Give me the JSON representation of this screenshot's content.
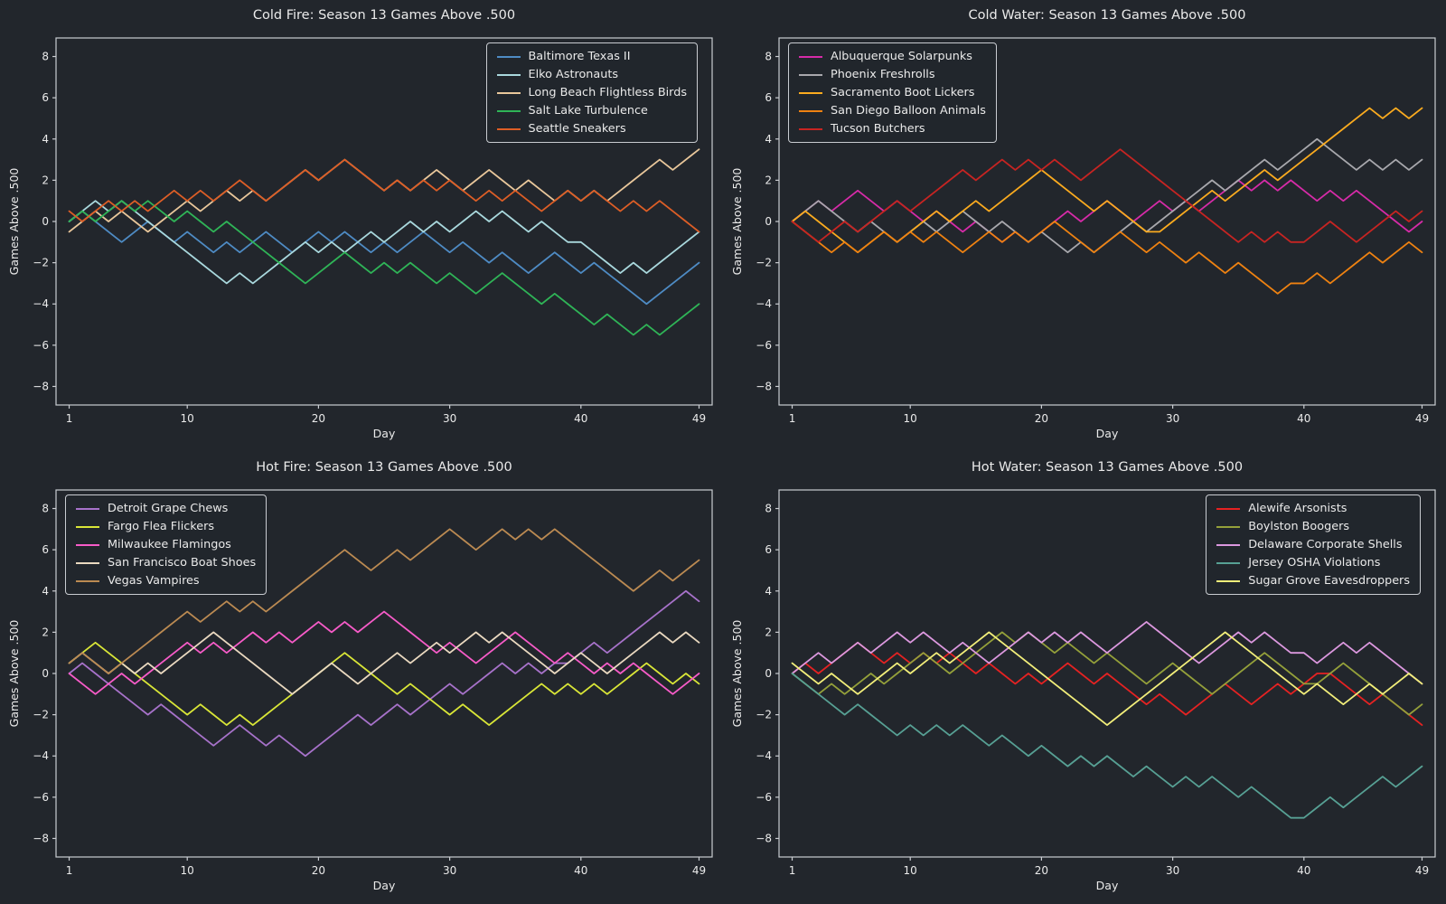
{
  "app": {
    "background": "#22262c",
    "text_color": "#eaeaea",
    "spine_color": "#c9ccd1"
  },
  "axis": {
    "x_label": "Day",
    "y_label": "Games Above .500",
    "x_ticks": [
      1,
      10,
      20,
      30,
      40,
      49
    ],
    "y_ticks": [
      -8,
      -6,
      -4,
      -2,
      0,
      2,
      4,
      6,
      8
    ],
    "x_range": [
      0,
      50
    ],
    "y_range": [
      -8.9,
      8.9
    ],
    "grid": false,
    "day_start": 1
  },
  "chart_data": [
    {
      "type": "line",
      "title": "Cold Fire: Season 13 Games Above .500",
      "xlabel": "Day",
      "ylabel": "Games Above .500",
      "legend_position": "top-right",
      "series": [
        {
          "name": "Baltimore Texas II",
          "color": "#4e8bc4",
          "values": [
            0,
            0.5,
            0,
            -0.5,
            -1,
            -0.5,
            0,
            -0.5,
            -1,
            -0.5,
            -1,
            -1.5,
            -1,
            -1.5,
            -1,
            -0.5,
            -1,
            -1.5,
            -1,
            -0.5,
            -1,
            -0.5,
            -1,
            -1.5,
            -1,
            -1.5,
            -1,
            -0.5,
            -1,
            -1.5,
            -1,
            -1.5,
            -2,
            -1.5,
            -2,
            -2.5,
            -2,
            -1.5,
            -2,
            -2.5,
            -2,
            -2.5,
            -3,
            -3.5,
            -4,
            -3.5,
            -3,
            -2.5,
            -2
          ]
        },
        {
          "name": "Elko Astronauts",
          "color": "#a9d8dd",
          "values": [
            0,
            0.5,
            1,
            0.5,
            1,
            0.5,
            0,
            -0.5,
            -1,
            -1.5,
            -2,
            -2.5,
            -3,
            -2.5,
            -3,
            -2.5,
            -2,
            -1.5,
            -1,
            -1.5,
            -1,
            -1.5,
            -1,
            -0.5,
            -1,
            -0.5,
            0,
            -0.5,
            0,
            -0.5,
            0,
            0.5,
            0,
            0.5,
            0,
            -0.5,
            0,
            -0.5,
            -1,
            -1,
            -1.5,
            -2,
            -2.5,
            -2,
            -2.5,
            -2,
            -1.5,
            -1,
            -0.5
          ]
        },
        {
          "name": "Long Beach Flightless Birds",
          "color": "#e9c79b",
          "values": [
            -0.5,
            0,
            0.5,
            0,
            0.5,
            0,
            -0.5,
            0,
            0.5,
            1,
            0.5,
            1,
            1.5,
            1,
            1.5,
            1,
            1.5,
            2,
            2.5,
            2,
            2.5,
            3,
            2.5,
            2,
            1.5,
            2,
            1.5,
            2,
            2.5,
            2,
            1.5,
            2,
            2.5,
            2,
            1.5,
            2,
            1.5,
            1,
            1.5,
            1,
            1.5,
            1,
            1.5,
            2,
            2.5,
            3,
            2.5,
            3,
            3.5
          ]
        },
        {
          "name": "Salt Lake Turbulence",
          "color": "#2fb457",
          "values": [
            0,
            0.5,
            0,
            0.5,
            1,
            0.5,
            1,
            0.5,
            0,
            0.5,
            0,
            -0.5,
            0,
            -0.5,
            -1,
            -1.5,
            -2,
            -2.5,
            -3,
            -2.5,
            -2,
            -1.5,
            -2,
            -2.5,
            -2,
            -2.5,
            -2,
            -2.5,
            -3,
            -2.5,
            -3,
            -3.5,
            -3,
            -2.5,
            -3,
            -3.5,
            -4,
            -3.5,
            -4,
            -4.5,
            -5,
            -4.5,
            -5,
            -5.5,
            -5,
            -5.5,
            -5,
            -4.5,
            -4
          ]
        },
        {
          "name": "Seattle Sneakers",
          "color": "#dd5e26",
          "values": [
            0.5,
            0,
            0.5,
            1,
            0.5,
            1,
            0.5,
            1,
            1.5,
            1,
            1.5,
            1,
            1.5,
            2,
            1.5,
            1,
            1.5,
            2,
            2.5,
            2,
            2.5,
            3,
            2.5,
            2,
            1.5,
            2,
            1.5,
            2,
            1.5,
            2,
            1.5,
            1,
            1.5,
            1,
            1.5,
            1,
            0.5,
            1,
            1.5,
            1,
            1.5,
            1,
            0.5,
            1,
            0.5,
            1,
            0.5,
            0,
            -0.5
          ]
        }
      ]
    },
    {
      "type": "line",
      "title": "Cold Water: Season 13 Games Above .500",
      "xlabel": "Day",
      "ylabel": "Games Above .500",
      "legend_position": "top-left",
      "series": [
        {
          "name": "Albuquerque Solarpunks",
          "color": "#d62ba8",
          "values": [
            0,
            0.5,
            1,
            0.5,
            1,
            1.5,
            1,
            0.5,
            1,
            0.5,
            0,
            0.5,
            0,
            -0.5,
            0,
            -0.5,
            -1,
            -0.5,
            -1,
            -0.5,
            0,
            0.5,
            0,
            0.5,
            1,
            0.5,
            0,
            0.5,
            1,
            0.5,
            1,
            0.5,
            1,
            1.5,
            2,
            1.5,
            2,
            1.5,
            2,
            1.5,
            1,
            1.5,
            1,
            1.5,
            1,
            0.5,
            0,
            -0.5,
            0
          ]
        },
        {
          "name": "Phoenix Freshrolls",
          "color": "#a8a8ad",
          "values": [
            0,
            0.5,
            1,
            0.5,
            0,
            -0.5,
            0,
            -0.5,
            -1,
            -0.5,
            0,
            -0.5,
            0,
            0.5,
            0,
            -0.5,
            0,
            -0.5,
            -1,
            -0.5,
            -1,
            -1.5,
            -1,
            -1.5,
            -1,
            -0.5,
            0,
            -0.5,
            0,
            0.5,
            1,
            1.5,
            2,
            1.5,
            2,
            2.5,
            3,
            2.5,
            3,
            3.5,
            4,
            3.5,
            3,
            2.5,
            3,
            2.5,
            3,
            2.5,
            3
          ]
        },
        {
          "name": "Sacramento Boot Lickers",
          "color": "#fbab1f",
          "values": [
            0,
            0.5,
            0,
            -0.5,
            -1,
            -1.5,
            -1,
            -0.5,
            -1,
            -0.5,
            0,
            0.5,
            0,
            0.5,
            1,
            0.5,
            1,
            1.5,
            2,
            2.5,
            2,
            1.5,
            1,
            0.5,
            1,
            0.5,
            0,
            -0.5,
            -0.5,
            0,
            0.5,
            1,
            1.5,
            1,
            1.5,
            2,
            2.5,
            2,
            2.5,
            3,
            3.5,
            4,
            4.5,
            5,
            5.5,
            5,
            5.5,
            5,
            5.5
          ]
        },
        {
          "name": "San Diego Balloon Animals",
          "color": "#ef8211",
          "values": [
            0,
            -0.5,
            -1,
            -1.5,
            -1,
            -1.5,
            -1,
            -0.5,
            -1,
            -0.5,
            -1,
            -0.5,
            -1,
            -1.5,
            -1,
            -0.5,
            -1,
            -0.5,
            -1,
            -0.5,
            0,
            -0.5,
            -1,
            -1.5,
            -1,
            -0.5,
            -1,
            -1.5,
            -1,
            -1.5,
            -2,
            -1.5,
            -2,
            -2.5,
            -2,
            -2.5,
            -3,
            -3.5,
            -3,
            -3,
            -2.5,
            -3,
            -2.5,
            -2,
            -1.5,
            -2,
            -1.5,
            -1,
            -1.5
          ]
        },
        {
          "name": "Tucson Butchers",
          "color": "#c72422",
          "values": [
            0,
            -0.5,
            -1,
            -0.5,
            0,
            -0.5,
            0,
            0.5,
            1,
            0.5,
            1,
            1.5,
            2,
            2.5,
            2,
            2.5,
            3,
            2.5,
            3,
            2.5,
            3,
            2.5,
            2,
            2.5,
            3,
            3.5,
            3,
            2.5,
            2,
            1.5,
            1,
            0.5,
            0,
            -0.5,
            -1,
            -0.5,
            -1,
            -0.5,
            -1,
            -1,
            -0.5,
            0,
            -0.5,
            -1,
            -0.5,
            0,
            0.5,
            0,
            0.5
          ]
        }
      ]
    },
    {
      "type": "line",
      "title": "Hot Fire: Season 13 Games Above .500",
      "xlabel": "Day",
      "ylabel": "Games Above .500",
      "legend_position": "top-left",
      "series": [
        {
          "name": "Detroit Grape Chews",
          "color": "#a772ca",
          "values": [
            0,
            0.5,
            0,
            -0.5,
            -1,
            -1.5,
            -2,
            -1.5,
            -2,
            -2.5,
            -3,
            -3.5,
            -3,
            -2.5,
            -3,
            -3.5,
            -3,
            -3.5,
            -4,
            -3.5,
            -3,
            -2.5,
            -2,
            -2.5,
            -2,
            -1.5,
            -2,
            -1.5,
            -1,
            -0.5,
            -1,
            -0.5,
            0,
            0.5,
            0,
            0.5,
            0,
            0.5,
            0.5,
            1,
            1.5,
            1,
            1.5,
            2,
            2.5,
            3,
            3.5,
            4,
            3.5
          ]
        },
        {
          "name": "Fargo Flea Flickers",
          "color": "#d9e637",
          "values": [
            0.5,
            1,
            1.5,
            1,
            0.5,
            0,
            -0.5,
            -1,
            -1.5,
            -2,
            -1.5,
            -2,
            -2.5,
            -2,
            -2.5,
            -2,
            -1.5,
            -1,
            -0.5,
            0,
            0.5,
            1,
            0.5,
            0,
            -0.5,
            -1,
            -0.5,
            -1,
            -1.5,
            -2,
            -1.5,
            -2,
            -2.5,
            -2,
            -1.5,
            -1,
            -0.5,
            -1,
            -0.5,
            -1,
            -0.5,
            -1,
            -0.5,
            0,
            0.5,
            0,
            -0.5,
            0,
            -0.5
          ]
        },
        {
          "name": "Milwaukee Flamingos",
          "color": "#f75bc8",
          "values": [
            0,
            -0.5,
            -1,
            -0.5,
            0,
            -0.5,
            0,
            0.5,
            1,
            1.5,
            1,
            1.5,
            1,
            1.5,
            2,
            1.5,
            2,
            1.5,
            2,
            2.5,
            2,
            2.5,
            2,
            2.5,
            3,
            2.5,
            2,
            1.5,
            1,
            1.5,
            1,
            0.5,
            1,
            1.5,
            2,
            1.5,
            1,
            0.5,
            1,
            0.5,
            0,
            0.5,
            0,
            0.5,
            0,
            -0.5,
            -1,
            -0.5,
            0
          ]
        },
        {
          "name": "San Francisco Boat Shoes",
          "color": "#ead9c0",
          "values": [
            0.5,
            1,
            0.5,
            0,
            0.5,
            0,
            0.5,
            0,
            0.5,
            1,
            1.5,
            2,
            1.5,
            1,
            0.5,
            0,
            -0.5,
            -1,
            -0.5,
            0,
            0.5,
            0,
            -0.5,
            0,
            0.5,
            1,
            0.5,
            1,
            1.5,
            1,
            1.5,
            2,
            1.5,
            2,
            1.5,
            1,
            0.5,
            0,
            0.5,
            1,
            0.5,
            0,
            0.5,
            1,
            1.5,
            2,
            1.5,
            2,
            1.5
          ]
        },
        {
          "name": "Vegas Vampires",
          "color": "#bb8a52",
          "values": [
            0.5,
            1,
            0.5,
            0,
            0.5,
            1,
            1.5,
            2,
            2.5,
            3,
            2.5,
            3,
            3.5,
            3,
            3.5,
            3,
            3.5,
            4,
            4.5,
            5,
            5.5,
            6,
            5.5,
            5,
            5.5,
            6,
            5.5,
            6,
            6.5,
            7,
            6.5,
            6,
            6.5,
            7,
            6.5,
            7,
            6.5,
            7,
            6.5,
            6,
            5.5,
            5,
            4.5,
            4,
            4.5,
            5,
            4.5,
            5,
            5.5
          ]
        }
      ]
    },
    {
      "type": "line",
      "title": "Hot Water: Season 13 Games Above .500",
      "xlabel": "Day",
      "ylabel": "Games Above .500",
      "legend_position": "top-right",
      "series": [
        {
          "name": "Alewife Arsonists",
          "color": "#e52222",
          "values": [
            0,
            0.5,
            0,
            0.5,
            1,
            1.5,
            1,
            0.5,
            1,
            0.5,
            1,
            0.5,
            1,
            0.5,
            0,
            0.5,
            0,
            -0.5,
            0,
            -0.5,
            0,
            0.5,
            0,
            -0.5,
            0,
            -0.5,
            -1,
            -1.5,
            -1,
            -1.5,
            -2,
            -1.5,
            -1,
            -0.5,
            -1,
            -1.5,
            -1,
            -0.5,
            -1,
            -0.5,
            0,
            0,
            -0.5,
            -1,
            -1.5,
            -1,
            -1.5,
            -2,
            -2.5
          ]
        },
        {
          "name": "Boylston Boogers",
          "color": "#94a03a",
          "values": [
            0,
            -0.5,
            -1,
            -0.5,
            -1,
            -0.5,
            0,
            -0.5,
            0,
            0.5,
            1,
            0.5,
            0,
            0.5,
            1,
            1.5,
            2,
            1.5,
            2,
            1.5,
            1,
            1.5,
            1,
            0.5,
            1,
            0.5,
            0,
            -0.5,
            0,
            0.5,
            0,
            -0.5,
            -1,
            -0.5,
            0,
            0.5,
            1,
            0.5,
            0,
            -0.5,
            -0.5,
            0,
            0.5,
            0,
            -0.5,
            -1,
            -1.5,
            -2,
            -1.5
          ]
        },
        {
          "name": "Delaware Corporate Shells",
          "color": "#dc98df",
          "values": [
            0,
            0.5,
            1,
            0.5,
            1,
            1.5,
            1,
            1.5,
            2,
            1.5,
            2,
            1.5,
            1,
            1.5,
            1,
            0.5,
            1,
            1.5,
            2,
            1.5,
            2,
            1.5,
            2,
            1.5,
            1,
            1.5,
            2,
            2.5,
            2,
            1.5,
            1,
            0.5,
            1,
            1.5,
            2,
            1.5,
            2,
            1.5,
            1,
            1,
            0.5,
            1,
            1.5,
            1,
            1.5,
            1,
            0.5,
            0,
            -0.5
          ]
        },
        {
          "name": "Jersey OSHA Violations",
          "color": "#57a094",
          "values": [
            0,
            -0.5,
            -1,
            -1.5,
            -2,
            -1.5,
            -2,
            -2.5,
            -3,
            -2.5,
            -3,
            -2.5,
            -3,
            -2.5,
            -3,
            -3.5,
            -3,
            -3.5,
            -4,
            -3.5,
            -4,
            -4.5,
            -4,
            -4.5,
            -4,
            -4.5,
            -5,
            -4.5,
            -5,
            -5.5,
            -5,
            -5.5,
            -5,
            -5.5,
            -6,
            -5.5,
            -6,
            -6.5,
            -7,
            -7,
            -6.5,
            -6,
            -6.5,
            -6,
            -5.5,
            -5,
            -5.5,
            -5,
            -4.5
          ]
        },
        {
          "name": "Sugar Grove Eavesdroppers",
          "color": "#f2ee7a",
          "values": [
            0.5,
            0,
            -0.5,
            0,
            -0.5,
            -1,
            -0.5,
            0,
            0.5,
            0,
            0.5,
            1,
            0.5,
            1,
            1.5,
            2,
            1.5,
            1,
            0.5,
            0,
            -0.5,
            -1,
            -1.5,
            -2,
            -2.5,
            -2,
            -1.5,
            -1,
            -0.5,
            0,
            0.5,
            1,
            1.5,
            2,
            1.5,
            1,
            0.5,
            0,
            -0.5,
            -1,
            -0.5,
            -1,
            -1.5,
            -1,
            -0.5,
            -1,
            -0.5,
            0,
            -0.5
          ]
        }
      ]
    }
  ]
}
